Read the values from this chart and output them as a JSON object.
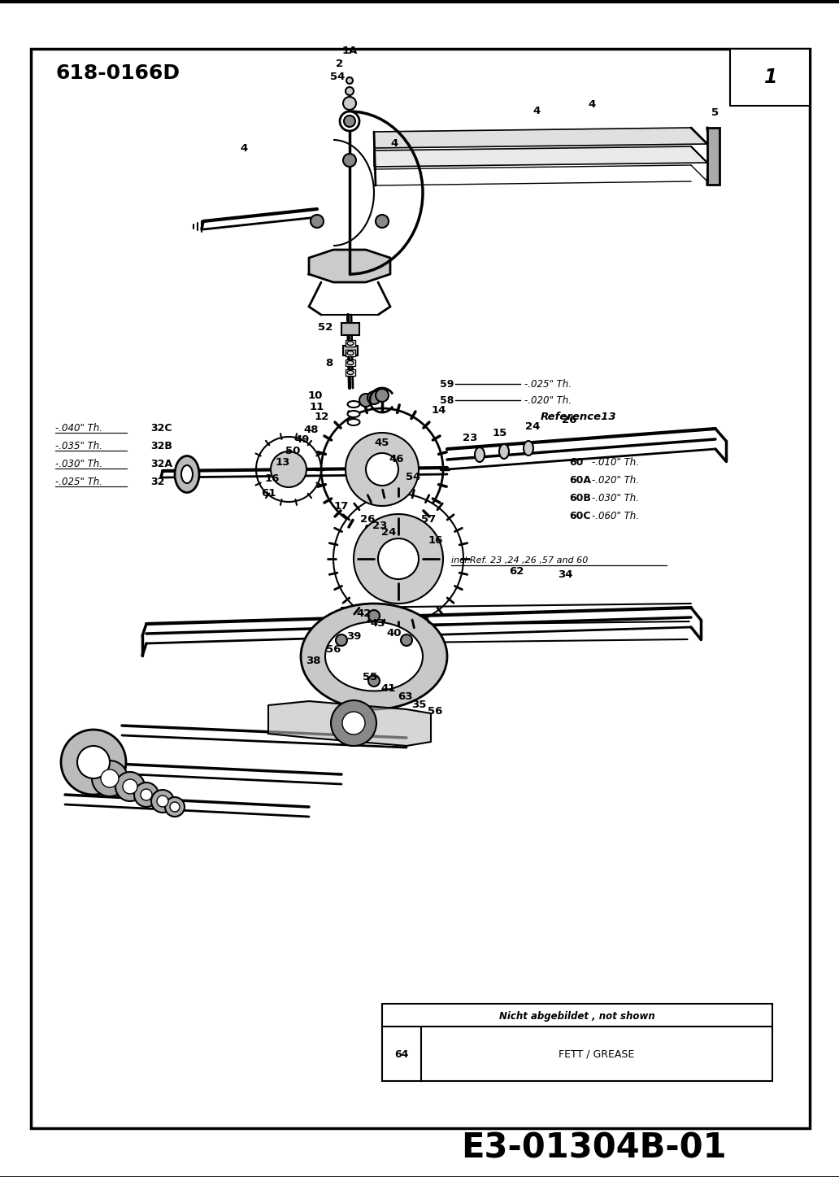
{
  "bg_color": "#ffffff",
  "page_bg": "#f5f5f0",
  "top_label": "618-0166D",
  "page_number": "1",
  "bottom_code": "E3-01304B-01",
  "note_title": "Nicht abgebildet , not shown",
  "note_row_num": "64",
  "note_row_text": "FETT / GREASE",
  "left_ann": [
    {
      "text": "-.040\" Th.",
      "ref": "32C"
    },
    {
      "text": "-.035\" Th.",
      "ref": "32B"
    },
    {
      "text": "-.030\" Th.",
      "ref": "32A"
    },
    {
      "text": "-.025\" Th.",
      "ref": "32"
    }
  ],
  "right_ann": [
    {
      "text": "-.010\" Th.",
      "ref": "60"
    },
    {
      "text": "-.020\" Th.",
      "ref": "60A"
    },
    {
      "text": "-.030\" Th.",
      "ref": "60B"
    },
    {
      "text": "-.060\" Th.",
      "ref": "60C"
    }
  ]
}
